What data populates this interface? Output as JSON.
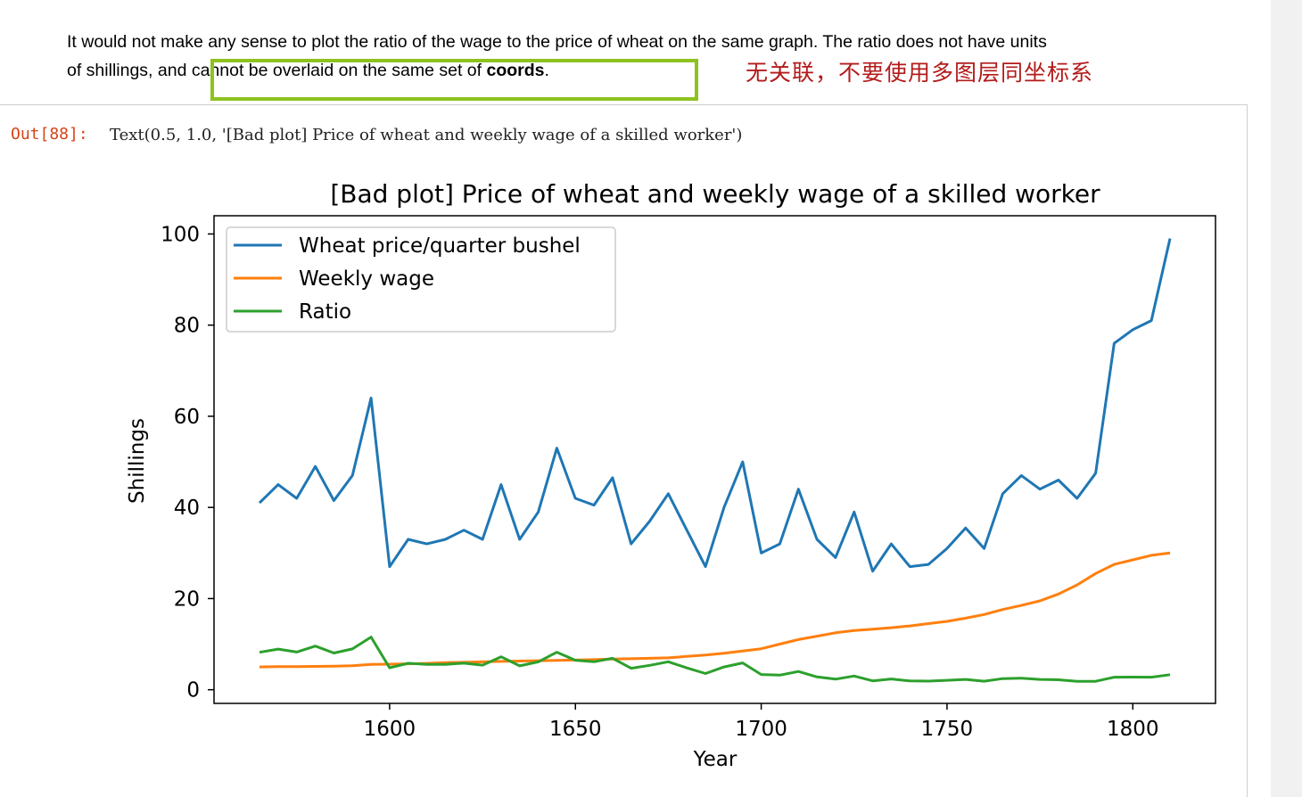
{
  "markdown": {
    "line1": "It would not make any sense to plot the ratio of the wage to the price of wheat on the same graph. The ratio does not have units",
    "line2_pre": "of shillings, and cannot be overlaid on the same set of ",
    "line2_bold": "coords",
    "line2_post": "."
  },
  "annotation": "无关联，不要使用多图层同坐标系",
  "colors": {
    "highlight": "#8dc21f",
    "annotation": "#b31b1b",
    "prompt": "#d84315"
  },
  "output": {
    "prompt": "Out[88]:",
    "text": "Text(0.5, 1.0, '[Bad plot] Price of wheat and weekly wage of a skilled worker')"
  },
  "chart_data": {
    "type": "line",
    "title": "[Bad plot] Price of wheat and weekly wage of a skilled worker",
    "xlabel": "Year",
    "ylabel": "Shillings",
    "xlim": [
      1552.75,
      1822.25
    ],
    "ylim": [
      -3.0,
      104.0
    ],
    "x_ticks": [
      1600,
      1650,
      1700,
      1750,
      1800
    ],
    "y_ticks": [
      0,
      20,
      40,
      60,
      80,
      100
    ],
    "grid": false,
    "legend_position": "upper-left",
    "x": [
      1565,
      1570,
      1575,
      1580,
      1585,
      1590,
      1595,
      1600,
      1605,
      1610,
      1615,
      1620,
      1625,
      1630,
      1635,
      1640,
      1645,
      1650,
      1655,
      1660,
      1665,
      1670,
      1675,
      1680,
      1685,
      1690,
      1695,
      1700,
      1705,
      1710,
      1715,
      1720,
      1725,
      1730,
      1735,
      1740,
      1745,
      1750,
      1755,
      1760,
      1765,
      1770,
      1775,
      1780,
      1785,
      1790,
      1795,
      1800,
      1805,
      1810
    ],
    "series": [
      {
        "name": "Wheat price/quarter bushel",
        "color": "#1f77b4",
        "values": [
          41,
          45,
          42,
          49,
          41.5,
          47,
          64,
          27,
          33,
          32,
          33,
          35,
          33,
          45,
          33,
          39,
          53,
          42,
          40.5,
          46.5,
          32,
          37,
          43,
          35,
          27,
          40,
          50,
          30,
          32,
          44,
          33,
          29,
          39,
          26,
          32,
          27,
          27.5,
          31,
          35.5,
          31,
          43,
          47,
          44,
          46,
          42,
          47.5,
          76,
          79,
          81,
          99
        ]
      },
      {
        "name": "Weekly wage",
        "color": "#ff7f0e",
        "values": [
          5,
          5.05,
          5.08,
          5.12,
          5.15,
          5.25,
          5.54,
          5.61,
          5.69,
          5.78,
          5.94,
          6.01,
          6.12,
          6.22,
          6.3,
          6.37,
          6.45,
          6.5,
          6.6,
          6.75,
          6.8,
          6.9,
          7,
          7.3,
          7.6,
          8,
          8.5,
          9,
          10,
          11,
          11.75,
          12.5,
          13,
          13.3,
          13.6,
          14,
          14.5,
          15,
          15.7,
          16.5,
          17.6,
          18.5,
          19.5,
          21,
          23,
          25.5,
          27.5,
          28.5,
          29.5,
          30
        ]
      },
      {
        "name": "Ratio",
        "color": "#2ca02c",
        "values": [
          8.2,
          8.91,
          8.27,
          9.57,
          8.06,
          8.95,
          11.55,
          4.81,
          5.8,
          5.54,
          5.56,
          5.82,
          5.39,
          7.23,
          5.24,
          6.12,
          8.22,
          6.46,
          6.14,
          6.89,
          4.71,
          5.36,
          6.14,
          4.79,
          3.55,
          5,
          5.88,
          3.33,
          3.2,
          4,
          2.81,
          2.32,
          3,
          1.95,
          2.35,
          1.93,
          1.9,
          2.07,
          2.26,
          1.88,
          2.44,
          2.54,
          2.26,
          2.19,
          1.83,
          1.86,
          2.76,
          2.77,
          2.75,
          3.3
        ]
      }
    ]
  }
}
